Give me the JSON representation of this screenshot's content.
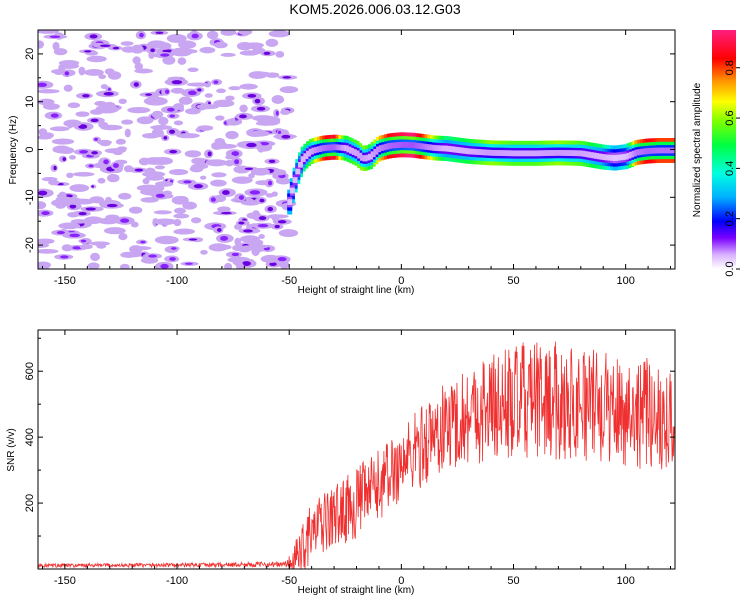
{
  "title": "KOM5.2026.006.03.12.G03",
  "chart_data": [
    {
      "type": "heatmap",
      "name": "spectrogram",
      "xlabel": "Height of straight line (km)",
      "ylabel": "Frequency (Hz)",
      "xlim": [
        -162,
        122
      ],
      "ylim": [
        -25,
        25
      ],
      "xticks": [
        -150,
        -100,
        -50,
        0,
        50,
        100
      ],
      "yticks": [
        -20,
        -10,
        0,
        10,
        20
      ],
      "colorbar": {
        "label": "Normalized spectral amplitude",
        "range": [
          0,
          0.95
        ],
        "ticks": [
          0.0,
          0.2,
          0.4,
          0.6,
          0.8
        ]
      },
      "noise_region": {
        "x_range": [
          -162,
          -50
        ],
        "y_range": [
          -25,
          25
        ],
        "amplitude": 0.1
      },
      "ridge": {
        "x": [
          -50,
          -48,
          -46,
          -44,
          -42,
          -40,
          -35,
          -30,
          -25,
          -20,
          -17,
          -14,
          -10,
          -5,
          0,
          5,
          10,
          15,
          20,
          30,
          40,
          50,
          60,
          70,
          80,
          90,
          95,
          100,
          105,
          110,
          115,
          122
        ],
        "frequency": [
          -11,
          -7,
          -4,
          -2,
          -1,
          -0.3,
          0.3,
          0.5,
          0.3,
          -0.8,
          -2,
          -1.5,
          0.2,
          0.8,
          1.0,
          0.9,
          0.6,
          0.3,
          0.2,
          -0.4,
          -0.7,
          -0.8,
          -0.8,
          -0.7,
          -0.8,
          -1.6,
          -1.8,
          -1.5,
          -0.6,
          -0.3,
          -0.2,
          -0.2
        ],
        "amplitude": [
          0.3,
          0.35,
          0.4,
          0.45,
          0.5,
          0.55,
          0.8,
          0.9,
          0.5,
          0.55,
          0.6,
          0.5,
          0.7,
          0.85,
          0.9,
          0.95,
          0.8,
          0.6,
          0.45,
          0.5,
          0.6,
          0.55,
          0.55,
          0.6,
          0.55,
          0.45,
          0.3,
          0.35,
          0.75,
          0.85,
          0.8,
          0.8
        ]
      }
    },
    {
      "type": "line",
      "name": "snr",
      "color": "#f03030",
      "xlabel": "Height of straight line (km)",
      "ylabel": "SNR (v/v)",
      "xlim": [
        -162,
        122
      ],
      "ylim": [
        0,
        725
      ],
      "xticks": [
        -150,
        -100,
        -50,
        0,
        50,
        100
      ],
      "yticks": [
        200,
        400,
        600
      ],
      "envelope": {
        "x": [
          -162,
          -100,
          -52,
          -48,
          -45,
          -40,
          -30,
          -20,
          -10,
          0,
          10,
          20,
          30,
          40,
          50,
          60,
          70,
          80,
          90,
          100,
          110,
          122
        ],
        "mean": [
          10,
          12,
          14,
          22,
          60,
          110,
          160,
          200,
          255,
          320,
          380,
          430,
          470,
          490,
          505,
          510,
          510,
          505,
          490,
          480,
          470,
          460
        ],
        "amp": [
          6,
          6,
          8,
          40,
          80,
          90,
          95,
          110,
          110,
          115,
          130,
          140,
          150,
          170,
          180,
          180,
          180,
          175,
          170,
          170,
          170,
          170
        ]
      }
    }
  ]
}
